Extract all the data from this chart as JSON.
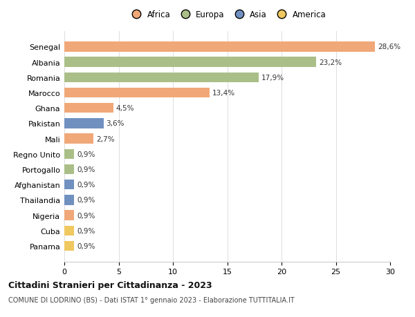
{
  "countries": [
    "Senegal",
    "Albania",
    "Romania",
    "Marocco",
    "Ghana",
    "Pakistan",
    "Mali",
    "Regno Unito",
    "Portogallo",
    "Afghanistan",
    "Thailandia",
    "Nigeria",
    "Cuba",
    "Panama"
  ],
  "values": [
    28.6,
    23.2,
    17.9,
    13.4,
    4.5,
    3.6,
    2.7,
    0.9,
    0.9,
    0.9,
    0.9,
    0.9,
    0.9,
    0.9
  ],
  "labels": [
    "28,6%",
    "23,2%",
    "17,9%",
    "13,4%",
    "4,5%",
    "3,6%",
    "2,7%",
    "0,9%",
    "0,9%",
    "0,9%",
    "0,9%",
    "0,9%",
    "0,9%",
    "0,9%"
  ],
  "continents": [
    "Africa",
    "Europa",
    "Europa",
    "Africa",
    "Africa",
    "Asia",
    "Africa",
    "Europa",
    "Europa",
    "Asia",
    "Asia",
    "Africa",
    "America",
    "America"
  ],
  "colors": {
    "Africa": "#F0A878",
    "Europa": "#AABF88",
    "Asia": "#7090C0",
    "America": "#F0C860"
  },
  "title": "Cittadini Stranieri per Cittadinanza - 2023",
  "subtitle": "COMUNE DI LODRINO (BS) - Dati ISTAT 1° gennaio 2023 - Elaborazione TUTTITALIA.IT",
  "xlim": [
    0,
    30
  ],
  "xticks": [
    0,
    5,
    10,
    15,
    20,
    25,
    30
  ],
  "background_color": "#ffffff",
  "bar_height": 0.65,
  "legend_order": [
    "Africa",
    "Europa",
    "Asia",
    "America"
  ]
}
